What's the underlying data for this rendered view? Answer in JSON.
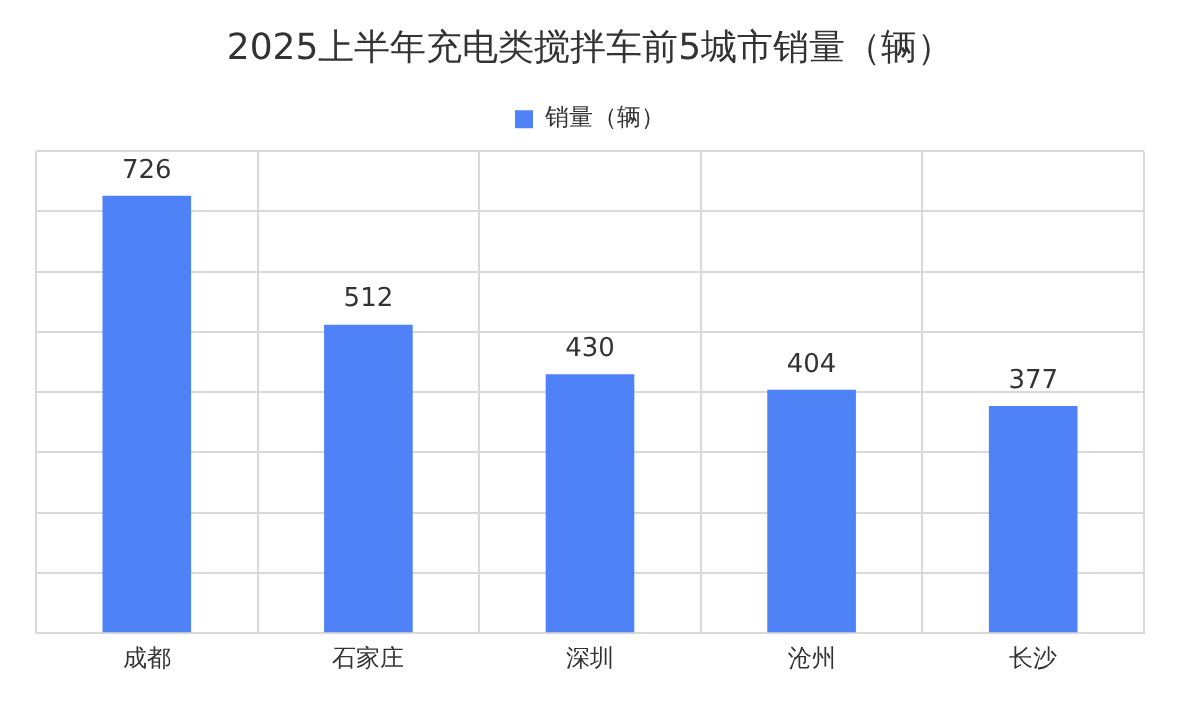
{
  "chart_data": {
    "type": "bar",
    "title": "2025上半年充电类搅拌车前5城市销量（辆）",
    "categories": [
      "成都",
      "石家庄",
      "深圳",
      "沧州",
      "长沙"
    ],
    "series": [
      {
        "name": "销量（辆）",
        "color": "#4f81f7",
        "values": [
          726,
          512,
          430,
          404,
          377
        ]
      }
    ],
    "ylim": [
      0,
      800
    ],
    "yticks": [
      {
        "value": 0,
        "label": null
      },
      {
        "value": 100,
        "label": null
      },
      {
        "value": 200,
        "label": null
      },
      {
        "value": 300,
        "label": null
      },
      {
        "value": 400,
        "label": null
      },
      {
        "value": 500,
        "label": null
      },
      {
        "value": 600,
        "label": null
      },
      {
        "value": 700,
        "label": null
      },
      {
        "value": 800,
        "label": null
      }
    ],
    "grid": true,
    "legend": "top",
    "tick_labels": "x",
    "data_labels": true
  }
}
